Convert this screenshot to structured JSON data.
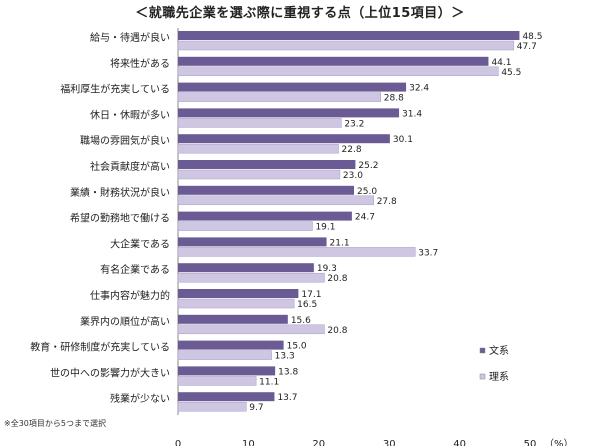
{
  "title": "＜就職先企業を選ぶ際に重視する点（上位15項目）＞",
  "footnote": "※全30項目から5つまで選択",
  "chart_data": {
    "type": "bar",
    "orientation": "horizontal",
    "categories": [
      "給与・待遇が良い",
      "将来性がある",
      "福利厚生が充実している",
      "休日・休暇が多い",
      "職場の雰囲気が良い",
      "社会貢献度が高い",
      "業績・財務状況が良い",
      "希望の勤務地で働ける",
      "大企業である",
      "有名企業である",
      "仕事内容が魅力的",
      "業界内の順位が高い",
      "教育・研修制度が充実している",
      "世の中への影響力が大きい",
      "残業が少ない"
    ],
    "series": [
      {
        "name": "文系",
        "color": "#6b5b95",
        "values": [
          48.5,
          44.1,
          32.4,
          31.4,
          30.1,
          25.2,
          25.0,
          24.7,
          21.1,
          19.3,
          17.1,
          15.6,
          15.0,
          13.8,
          13.7
        ]
      },
      {
        "name": "理系",
        "color": "#cfc6e2",
        "values": [
          47.7,
          45.5,
          28.8,
          23.2,
          22.8,
          23.0,
          27.8,
          19.1,
          33.7,
          20.8,
          16.5,
          20.8,
          13.3,
          11.1,
          9.7
        ]
      }
    ],
    "xlim": [
      0,
      50
    ],
    "xticks": [
      0,
      10,
      20,
      30,
      40,
      50
    ],
    "x_unit": "（%）",
    "legend_position": "right-bottom",
    "grid": false
  }
}
